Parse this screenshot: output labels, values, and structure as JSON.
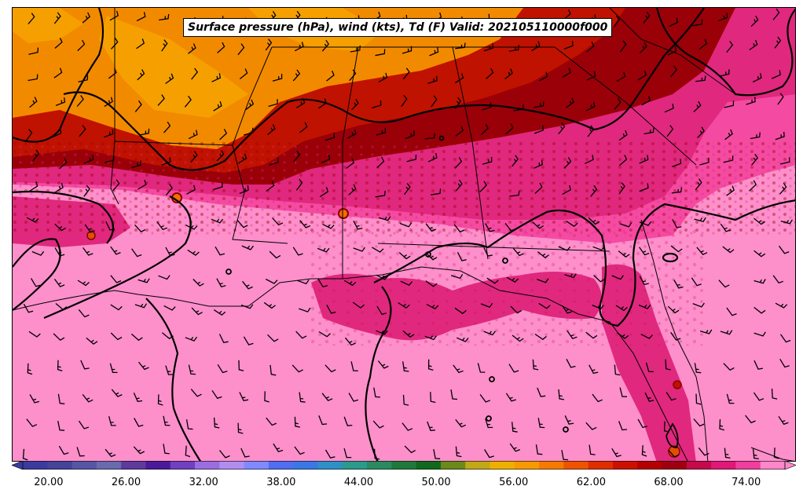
{
  "title": "Surface pressure (hPa), wind (kts), Td (F) Valid: 202105110000f000",
  "colorbar": {
    "tick_labels": [
      "20.00",
      "26.00",
      "32.00",
      "38.00",
      "44.00",
      "50.00",
      "56.00",
      "62.00",
      "68.00",
      "74.00"
    ],
    "tick_values": [
      20,
      26,
      32,
      38,
      44,
      50,
      56,
      62,
      68,
      74
    ],
    "range": [
      18,
      77
    ],
    "extend": "both",
    "colors": [
      "#3b3b9e",
      "#44449a",
      "#5656a6",
      "#6a6aae",
      "#5e3a9c",
      "#4a1a9a",
      "#7040c0",
      "#9a6ee0",
      "#b08ef0",
      "#7f8aff",
      "#4f6ef0",
      "#3a78e6",
      "#2f90c8",
      "#2c9a8c",
      "#2a8a60",
      "#1e7a3a",
      "#0f6a1e",
      "#6a8a1a",
      "#c2a818",
      "#eeb000",
      "#f59a00",
      "#f57a00",
      "#ee5400",
      "#de2e00",
      "#cc1000",
      "#b40000",
      "#9e0010",
      "#c40a4a",
      "#e01878",
      "#f03e9e",
      "#ff86c8"
    ]
  },
  "field_colors": {
    "orange_dry": "#f28a00",
    "orange_light": "#f5a000",
    "red_band": "#c01200",
    "dark_red": "#9a0008",
    "magenta": "#e0287e",
    "pink": "#f44aa2",
    "light_pink": "#fc8ac8",
    "gulf_pink": "#fd8fcb"
  }
}
